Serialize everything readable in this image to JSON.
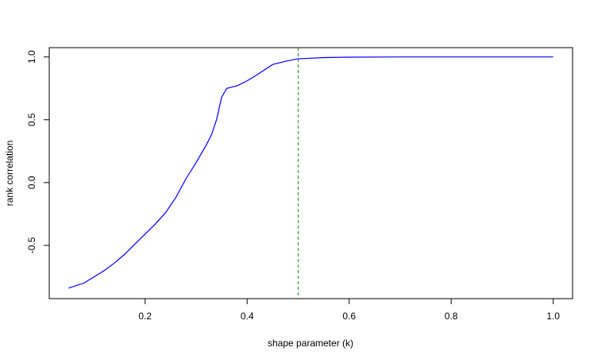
{
  "chart_data": {
    "type": "line",
    "x_label": "shape parameter (k)",
    "y_label": "rank correlation",
    "x": [
      0.05,
      0.08,
      0.1,
      0.12,
      0.14,
      0.16,
      0.18,
      0.2,
      0.22,
      0.24,
      0.26,
      0.28,
      0.3,
      0.32,
      0.33,
      0.34,
      0.35,
      0.36,
      0.38,
      0.4,
      0.42,
      0.45,
      0.48,
      0.5,
      0.55,
      0.6,
      0.7,
      0.8,
      0.9,
      1.0
    ],
    "series": [
      {
        "color": "#0000ff",
        "values": [
          -0.84,
          -0.8,
          -0.75,
          -0.7,
          -0.64,
          -0.57,
          -0.49,
          -0.41,
          -0.33,
          -0.24,
          -0.12,
          0.03,
          0.16,
          0.3,
          0.38,
          0.5,
          0.68,
          0.75,
          0.77,
          0.81,
          0.86,
          0.94,
          0.97,
          0.985,
          0.995,
          0.998,
          1.0,
          1.0,
          1.0,
          1.0
        ]
      }
    ],
    "vline": {
      "x": 0.5,
      "color": "#228b22",
      "dashed": true
    },
    "xlim": [
      0.012,
      1.038
    ],
    "ylim": [
      -0.924,
      1.074
    ],
    "xticks": [
      0.2,
      0.4,
      0.6,
      0.8,
      {
        "value": 1.0,
        "label": "1.0"
      }
    ],
    "yticks": [
      -0.5,
      {
        "value": 0.0,
        "label": "0.0"
      },
      0.5,
      {
        "value": 1.0,
        "label": "1.0"
      }
    ]
  }
}
